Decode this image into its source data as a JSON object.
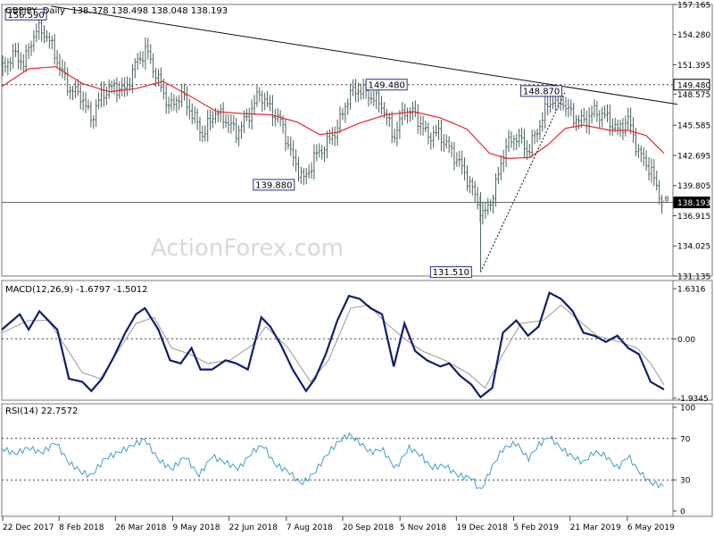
{
  "header": {
    "symbol": "GBPJPY",
    "timeframe": "Daily",
    "ohlc": "138.378 138.498 138.048 138.193"
  },
  "watermark": "ActionForex.com",
  "colors": {
    "candle": "#46605e",
    "ma": "#e8282d",
    "trendline": "#111111",
    "dotted": "#444444",
    "macd": "#0f1f6b",
    "signal": "#9a9a9a",
    "rsi": "#3d9fd0",
    "label_border": "#23357f",
    "label_bg": "#ffffff",
    "price_tag_bg": "#000000",
    "price_tag_fg": "#ffffff"
  },
  "chart_data": [
    {
      "type": "candlestick",
      "panel": "price",
      "y_axis_ticks": [
        "157.165",
        "154.280",
        "151.395",
        "148.575",
        "145.585",
        "142.695",
        "139.805",
        "136.915",
        "134.025",
        "131.135"
      ],
      "ylim": [
        131.135,
        157.165
      ],
      "x_axis_ticks": [
        "22 Dec 2017",
        "8 Feb 2018",
        "26 Mar 2018",
        "9 May 2018",
        "22 Jun 2018",
        "7 Aug 2018",
        "20 Sep 2018",
        "5 Nov 2018",
        "19 Dec 2018",
        "5 Feb 2019",
        "21 Mar 2019",
        "6 May 2019"
      ],
      "close_path": [
        [
          0,
          150.8
        ],
        [
          12,
          152.4
        ],
        [
          25,
          151.6
        ],
        [
          38,
          154.8
        ],
        [
          50,
          154.3
        ],
        [
          62,
          151.8
        ],
        [
          75,
          149.1
        ],
        [
          88,
          148.5
        ],
        [
          100,
          146.2
        ],
        [
          112,
          148.6
        ],
        [
          125,
          149.3
        ],
        [
          138,
          148.9
        ],
        [
          150,
          151.6
        ],
        [
          162,
          152.8
        ],
        [
          175,
          149.8
        ],
        [
          188,
          147.2
        ],
        [
          200,
          148.6
        ],
        [
          212,
          146.8
        ],
        [
          225,
          144.6
        ],
        [
          238,
          146.9
        ],
        [
          250,
          146.1
        ],
        [
          262,
          144.9
        ],
        [
          275,
          146.4
        ],
        [
          288,
          148.7
        ],
        [
          300,
          147.1
        ],
        [
          312,
          145.9
        ],
        [
          325,
          142.4
        ],
        [
          338,
          140.3
        ],
        [
          350,
          142.6
        ],
        [
          362,
          143.7
        ],
        [
          375,
          145.3
        ],
        [
          388,
          148.5
        ],
        [
          400,
          149.1
        ],
        [
          412,
          148.4
        ],
        [
          425,
          147.5
        ],
        [
          438,
          144.4
        ],
        [
          450,
          147.1
        ],
        [
          462,
          146.6
        ],
        [
          475,
          144.6
        ],
        [
          488,
          144.8
        ],
        [
          500,
          143.4
        ],
        [
          512,
          141.9
        ],
        [
          525,
          139.6
        ],
        [
          538,
          136.8
        ],
        [
          550,
          139.1
        ],
        [
          562,
          143.4
        ],
        [
          575,
          144.6
        ],
        [
          588,
          143.1
        ],
        [
          600,
          145.4
        ],
        [
          612,
          147.9
        ],
        [
          625,
          148.0
        ],
        [
          638,
          146.4
        ],
        [
          650,
          145.9
        ],
        [
          662,
          146.9
        ],
        [
          675,
          146.4
        ],
        [
          688,
          145.1
        ],
        [
          700,
          146.1
        ],
        [
          712,
          142.9
        ],
        [
          725,
          141.3
        ],
        [
          738,
          138.2
        ]
      ],
      "series": [
        {
          "name": "moving_average",
          "points": [
            [
              0,
              149.3
            ],
            [
              30,
              151.0
            ],
            [
              60,
              151.2
            ],
            [
              90,
              149.6
            ],
            [
              120,
              148.8
            ],
            [
              150,
              149.1
            ],
            [
              180,
              149.8
            ],
            [
              210,
              148.4
            ],
            [
              240,
              146.9
            ],
            [
              270,
              146.7
            ],
            [
              300,
              146.6
            ],
            [
              330,
              145.9
            ],
            [
              355,
              144.7
            ],
            [
              375,
              144.9
            ],
            [
              400,
              145.8
            ],
            [
              430,
              146.6
            ],
            [
              460,
              146.9
            ],
            [
              490,
              146.3
            ],
            [
              520,
              145.2
            ],
            [
              545,
              142.9
            ],
            [
              565,
              142.4
            ],
            [
              590,
              142.5
            ],
            [
              610,
              143.7
            ],
            [
              630,
              145.3
            ],
            [
              650,
              145.6
            ],
            [
              680,
              145.1
            ],
            [
              700,
              145.1
            ],
            [
              720,
              144.6
            ],
            [
              740,
              142.9
            ]
          ]
        }
      ],
      "trendline": {
        "from": [
          55,
          157.0
        ],
        "to": [
          755,
          147.6
        ]
      },
      "resistance_dotted": 149.48,
      "support_solid": 138.193,
      "rising_dotted": {
        "from": [
          535,
          131.51
        ],
        "to": [
          630,
          148.87
        ]
      },
      "annotations": [
        {
          "text": "156.590",
          "x": 27,
          "price": 156.2
        },
        {
          "text": "149.480",
          "x": 430,
          "price": 149.48
        },
        {
          "text": "148.870",
          "x": 603,
          "price": 148.87
        },
        {
          "text": "139.880",
          "x": 304,
          "price": 139.88
        },
        {
          "text": "131.510",
          "x": 502,
          "price": 131.51
        }
      ],
      "right_labels": [
        {
          "text": "149.480",
          "price": 149.48,
          "style": "box"
        },
        {
          "text": "138.193",
          "price": 138.193,
          "style": "filled"
        }
      ],
      "level_fragment": ".8"
    },
    {
      "type": "line",
      "panel": "macd",
      "title": "MACD(12,26,9) -1.6797 -1.5012",
      "y_axis_ticks": [
        "1.6316",
        "0.00",
        "-1.9345"
      ],
      "ylim": [
        -2.0,
        1.9
      ],
      "zero_line": 0.0,
      "series": [
        {
          "name": "macd",
          "points": [
            [
              0,
              0.3
            ],
            [
              20,
              0.8
            ],
            [
              30,
              0.3
            ],
            [
              42,
              0.9
            ],
            [
              52,
              0.6
            ],
            [
              62,
              0.3
            ],
            [
              75,
              -1.3
            ],
            [
              90,
              -1.4
            ],
            [
              100,
              -1.7
            ],
            [
              112,
              -1.3
            ],
            [
              125,
              -0.6
            ],
            [
              138,
              0.2
            ],
            [
              150,
              0.8
            ],
            [
              160,
              1.0
            ],
            [
              175,
              0.3
            ],
            [
              188,
              -0.7
            ],
            [
              200,
              -0.8
            ],
            [
              212,
              -0.3
            ],
            [
              222,
              -1.0
            ],
            [
              235,
              -1.0
            ],
            [
              250,
              -0.7
            ],
            [
              262,
              -0.8
            ],
            [
              275,
              -1.0
            ],
            [
              290,
              0.7
            ],
            [
              300,
              0.4
            ],
            [
              312,
              -0.2
            ],
            [
              325,
              -1.0
            ],
            [
              340,
              -1.7
            ],
            [
              350,
              -1.3
            ],
            [
              362,
              -0.5
            ],
            [
              375,
              0.6
            ],
            [
              388,
              1.4
            ],
            [
              400,
              1.3
            ],
            [
              412,
              1.0
            ],
            [
              425,
              0.8
            ],
            [
              438,
              -0.9
            ],
            [
              450,
              0.5
            ],
            [
              462,
              -0.4
            ],
            [
              475,
              -0.7
            ],
            [
              490,
              -0.9
            ],
            [
              500,
              -0.8
            ],
            [
              512,
              -1.2
            ],
            [
              525,
              -1.5
            ],
            [
              535,
              -1.9
            ],
            [
              548,
              -1.6
            ],
            [
              560,
              0.2
            ],
            [
              575,
              0.6
            ],
            [
              588,
              0.1
            ],
            [
              600,
              0.4
            ],
            [
              612,
              1.5
            ],
            [
              625,
              1.3
            ],
            [
              638,
              0.9
            ],
            [
              650,
              0.2
            ],
            [
              662,
              0.1
            ],
            [
              675,
              -0.1
            ],
            [
              688,
              0.1
            ],
            [
              700,
              -0.3
            ],
            [
              712,
              -0.5
            ],
            [
              725,
              -1.4
            ],
            [
              740,
              -1.65
            ]
          ]
        },
        {
          "name": "signal",
          "points": [
            [
              0,
              0.2
            ],
            [
              30,
              0.6
            ],
            [
              52,
              0.6
            ],
            [
              70,
              -0.2
            ],
            [
              90,
              -1.1
            ],
            [
              110,
              -1.3
            ],
            [
              130,
              -0.4
            ],
            [
              150,
              0.5
            ],
            [
              170,
              0.7
            ],
            [
              190,
              -0.3
            ],
            [
              210,
              -0.5
            ],
            [
              230,
              -0.8
            ],
            [
              255,
              -0.7
            ],
            [
              280,
              -0.2
            ],
            [
              295,
              0.4
            ],
            [
              320,
              -0.3
            ],
            [
              345,
              -1.4
            ],
            [
              365,
              -0.7
            ],
            [
              390,
              1.0
            ],
            [
              410,
              1.1
            ],
            [
              430,
              0.5
            ],
            [
              450,
              0.0
            ],
            [
              470,
              -0.4
            ],
            [
              495,
              -0.7
            ],
            [
              520,
              -1.1
            ],
            [
              540,
              -1.6
            ],
            [
              560,
              -0.5
            ],
            [
              580,
              0.5
            ],
            [
              605,
              0.6
            ],
            [
              625,
              1.1
            ],
            [
              645,
              0.6
            ],
            [
              665,
              0.1
            ],
            [
              690,
              -0.1
            ],
            [
              710,
              -0.3
            ],
            [
              725,
              -0.8
            ],
            [
              740,
              -1.5
            ]
          ]
        }
      ]
    },
    {
      "type": "line",
      "panel": "rsi",
      "title": "RSI(14) 22.7572",
      "y_axis_ticks": [
        "100",
        "70",
        "30",
        "0"
      ],
      "ylim": [
        0,
        100
      ],
      "reference_lines": [
        70,
        30
      ],
      "series": [
        {
          "name": "rsi",
          "points": [
            [
              0,
              58
            ],
            [
              15,
              54
            ],
            [
              30,
              62
            ],
            [
              45,
              58
            ],
            [
              60,
              68
            ],
            [
              75,
              46
            ],
            [
              90,
              35
            ],
            [
              100,
              32
            ],
            [
              115,
              50
            ],
            [
              130,
              58
            ],
            [
              145,
              65
            ],
            [
              160,
              70
            ],
            [
              175,
              48
            ],
            [
              190,
              38
            ],
            [
              205,
              52
            ],
            [
              220,
              35
            ],
            [
              235,
              55
            ],
            [
              250,
              48
            ],
            [
              265,
              40
            ],
            [
              280,
              55
            ],
            [
              292,
              62
            ],
            [
              305,
              45
            ],
            [
              320,
              40
            ],
            [
              335,
              28
            ],
            [
              350,
              38
            ],
            [
              362,
              52
            ],
            [
              375,
              64
            ],
            [
              388,
              72
            ],
            [
              400,
              66
            ],
            [
              412,
              58
            ],
            [
              425,
              62
            ],
            [
              440,
              42
            ],
            [
              455,
              60
            ],
            [
              468,
              52
            ],
            [
              480,
              40
            ],
            [
              495,
              44
            ],
            [
              510,
              36
            ],
            [
              525,
              34
            ],
            [
              535,
              20
            ],
            [
              548,
              42
            ],
            [
              560,
              58
            ],
            [
              575,
              64
            ],
            [
              588,
              50
            ],
            [
              600,
              65
            ],
            [
              612,
              74
            ],
            [
              625,
              62
            ],
            [
              638,
              52
            ],
            [
              650,
              45
            ],
            [
              662,
              55
            ],
            [
              675,
              52
            ],
            [
              688,
              42
            ],
            [
              700,
              55
            ],
            [
              712,
              40
            ],
            [
              725,
              28
            ],
            [
              740,
              22.76
            ]
          ]
        }
      ]
    }
  ]
}
